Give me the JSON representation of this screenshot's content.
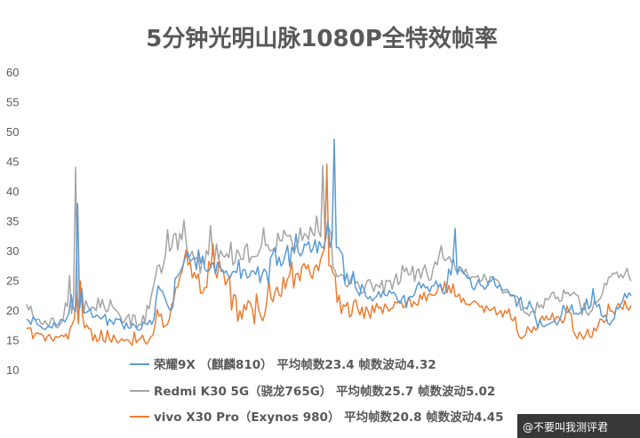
{
  "chart_data": {
    "type": "line",
    "title": "5分钟光明山脉1080P全特效帧率",
    "xlabel": "",
    "ylabel": "",
    "ylim": [
      10,
      60
    ],
    "yticks": [
      10,
      15,
      20,
      25,
      30,
      35,
      40,
      45,
      50,
      55,
      60
    ],
    "grid": false,
    "legend_position": "bottom",
    "series": [
      {
        "name": "荣耀9X （麒麟810）",
        "legend_label": "荣耀9X （麒麟810）    平均帧数23.4 帧数波动4.32",
        "color": "#5b9bd5",
        "values": [
          18.5,
          18.2,
          17.6,
          18.8,
          18.4,
          17.6,
          17.4,
          17.1,
          16.8,
          16.8,
          17.3,
          17.2,
          17.0,
          18.0,
          17.4,
          17.6,
          18.4,
          18.4,
          18.0,
          18.7,
          19.6,
          22.6,
          20.3,
          19.7,
          37.9,
          20.3,
          23.6,
          19.5,
          19.6,
          19.8,
          20.2,
          18.8,
          18.8,
          19.2,
          18.9,
          18.5,
          18.8,
          19.3,
          17.4,
          18.5,
          18.1,
          17.6,
          18.6,
          18.4,
          18.5,
          17.6,
          16.8,
          17.9,
          17.0,
          17.0,
          17.7,
          17.4,
          16.8,
          16.6,
          16.8,
          18.0,
          17.7,
          17.6,
          18.3,
          17.6,
          18.5,
          21.6,
          24.1,
          23.4,
          23.2,
          22.2,
          21.2,
          20.3,
          19.9,
          20.6,
          25.3,
          25.6,
          26.2,
          26.8,
          27.9,
          29.1,
          29.7,
          28.2,
          28.5,
          28.8,
          26.8,
          30.1,
          27.9,
          29.1,
          26.9,
          26.5,
          26.6,
          27.6,
          28.0,
          26.1,
          28.0,
          27.3,
          26.8,
          26.2,
          26.6,
          25.8,
          25.5,
          26.4,
          26.5,
          26.3,
          28.5,
          25.3,
          26.8,
          26.7,
          25.4,
          25.6,
          26.6,
          26.5,
          26.0,
          27.3,
          24.6,
          26.0,
          26.9,
          26.4,
          24.4,
          28.8,
          29.5,
          30.5,
          27.5,
          28.9,
          27.4,
          28.0,
          29.5,
          30.9,
          27.3,
          30.5,
          29.9,
          32.8,
          29.8,
          29.1,
          29.6,
          31.1,
          30.9,
          31.5,
          29.7,
          30.3,
          31.8,
          29.6,
          31.5,
          30.6,
          30.4,
          31.9,
          35.0,
          30.5,
          32.2,
          48.7,
          30.5,
          30.5,
          29.9,
          29.3,
          24.7,
          26.2,
          24.4,
          24.5,
          26.5,
          23.8,
          23.1,
          22.4,
          24.3,
          23.6,
          22.3,
          21.9,
          22.3,
          21.5,
          22.0,
          22.3,
          23.1,
          22.1,
          23.2,
          22.5,
          22.4,
          23.3,
          22.8,
          23.0,
          22.5,
          21.6,
          21.1,
          22.0,
          22.5,
          20.4,
          22.1,
          22.3,
          22.2,
          22.8,
          24.0,
          24.7,
          23.7,
          24.4,
          23.7,
          23.9,
          23.0,
          24.0,
          24.1,
          24.9,
          23.8,
          24.4,
          23.0,
          22.7,
          23.6,
          26.9,
          25.9,
          28.3,
          33.7,
          26.0,
          27.3,
          27.0,
          26.3,
          25.8,
          25.3,
          25.4,
          23.8,
          23.4,
          24.2,
          25.1,
          24.2,
          24.0,
          23.5,
          24.0,
          24.9,
          24.8,
          25.6,
          24.1,
          23.7,
          24.3,
          23.5,
          23.3,
          23.5,
          23.3,
          22.4,
          22.4,
          22.4,
          20.6,
          21.5,
          22.2,
          20.3,
          20.4,
          20.2,
          21.5,
          20.6,
          20.0,
          18.6,
          17.0,
          18.4,
          17.4,
          17.2,
          17.5,
          17.6,
          17.8,
          18.0,
          18.2,
          17.5,
          18.2,
          19.0,
          20.8,
          20.0,
          19.6,
          19.9,
          20.9,
          19.3,
          19.5,
          19.3,
          19.5,
          20.3,
          20.1,
          21.9,
          20.2,
          20.7,
          23.6,
          21.1,
          20.6,
          21.0,
          19.1,
          18.8,
          19.2,
          17.8,
          17.5,
          18.2,
          18.5,
          20.4,
          20.2,
          20.9,
          21.5,
          22.8,
          22.0,
          22.9,
          22.4
        ]
      },
      {
        "name": "Redmi K30 5G（骁龙765G）",
        "legend_label": "Redmi K30 5G（骁龙765G）   平均帧数25.7 帧数波动5.02",
        "color": "#a5a5a5",
        "values": [
          21.0,
          20.0,
          20.7,
          19.1,
          18.4,
          18.4,
          18.5,
          17.7,
          17.6,
          18.2,
          17.6,
          17.4,
          18.6,
          18.6,
          17.3,
          17.0,
          17.4,
          17.9,
          18.8,
          21.2,
          20.6,
          25.8,
          19.4,
          22.2,
          44.0,
          19.6,
          22.6,
          22.1,
          19.7,
          21.6,
          20.6,
          20.0,
          20.5,
          20.4,
          19.9,
          22.0,
          20.4,
          21.8,
          20.5,
          19.7,
          20.0,
          21.7,
          20.6,
          20.2,
          19.9,
          19.5,
          18.8,
          17.8,
          18.2,
          18.8,
          19.3,
          17.2,
          19.2,
          19.1,
          17.0,
          17.6,
          17.5,
          19.1,
          18.0,
          20.8,
          20.2,
          22.4,
          23.9,
          25.4,
          27.4,
          27.6,
          26.2,
          27.6,
          29.3,
          33.5,
          29.9,
          30.5,
          32.7,
          32.9,
          30.1,
          32.9,
          31.8,
          35.1,
          31.8,
          28.8,
          29.1,
          29.9,
          28.5,
          28.7,
          28.9,
          26.2,
          28.6,
          27.6,
          30.0,
          29.3,
          34.2,
          29.8,
          28.4,
          31.1,
          28.5,
          30.0,
          29.2,
          28.9,
          29.5,
          28.8,
          31.4,
          27.6,
          28.0,
          30.1,
          29.6,
          28.5,
          28.5,
          30.7,
          31.1,
          28.0,
          28.9,
          29.0,
          29.0,
          29.1,
          30.0,
          30.8,
          33.8,
          30.8,
          31.0,
          30.0,
          30.0,
          30.3,
          29.8,
          32.9,
          31.7,
          31.6,
          33.4,
          32.6,
          32.4,
          32.6,
          31.3,
          29.5,
          30.8,
          31.3,
          33.8,
          31.7,
          32.8,
          32.6,
          31.9,
          34.0,
          32.9,
          32.5,
          35.8,
          33.2,
          32.3,
          44.3,
          33.6,
          33.7,
          33.8,
          32.9,
          27.2,
          26.7,
          25.6,
          25.7,
          26.0,
          25.8,
          24.2,
          23.9,
          24.4,
          25.6,
          26.2,
          24.5,
          24.8,
          23.8,
          22.8,
          23.0,
          24.2,
          25.0,
          25.1,
          24.3,
          23.1,
          24.3,
          24.1,
          23.8,
          25.0,
          22.8,
          25.0,
          24.8,
          25.0,
          23.5,
          25.0,
          26.1,
          24.3,
          24.8,
          27.5,
          26.4,
          27.1,
          25.9,
          26.0,
          27.4,
          24.8,
          26.6,
          26.9,
          25.3,
          26.7,
          27.6,
          26.2,
          25.0,
          25.1,
          26.9,
          28.1,
          27.6,
          29.3,
          30.8,
          28.7,
          28.3,
          28.6,
          29.0,
          28.0,
          28.6,
          26.8,
          26.2,
          26.8,
          26.5,
          26.1,
          26.9,
          25.8,
          25.2,
          25.6,
          25.6,
          25.5,
          25.8,
          24.8,
          25.0,
          26.0,
          25.3,
          24.1,
          25.6,
          25.6,
          25.3,
          25.1,
          24.9,
          24.1,
          22.8,
          23.0,
          23.0,
          23.0,
          22.5,
          22.6,
          22.4,
          22.3,
          21.9,
          20.0,
          20.1,
          19.5,
          19.5,
          19.0,
          19.7,
          19.8,
          19.5,
          21.3,
          20.4,
          20.9,
          20.3,
          22.0,
          21.7,
          22.0,
          22.8,
          23.0,
          21.9,
          22.2,
          21.4,
          21.6,
          23.4,
          22.7,
          23.0,
          22.4,
          22.7,
          23.0,
          22.6,
          22.4,
          21.0,
          19.2,
          21.2,
          19.7,
          19.1,
          19.7,
          20.0,
          21.6,
          21.2,
          21.6,
          22.0,
          22.8,
          24.5,
          24.2,
          25.5,
          25.6,
          26.2,
          26.1,
          26.4,
          25.4,
          26.0,
          25.4,
          26.1,
          27.0,
          25.6,
          24.9
        ]
      },
      {
        "name": "vivo X30 Pro（Exynos 980）",
        "legend_label": "vivo X30 Pro（Exynos 980）  平均帧数20.8 帧数波动4.45",
        "color": "#ed7d31",
        "values": [
          16.9,
          17.0,
          17.0,
          15.2,
          15.9,
          16.2,
          16.0,
          16.0,
          15.7,
          14.8,
          15.6,
          15.9,
          15.1,
          14.8,
          15.6,
          15.4,
          15.6,
          15.8,
          15.5,
          16.0,
          15.1,
          16.9,
          17.6,
          18.5,
          22.8,
          17.7,
          24.9,
          19.0,
          17.0,
          17.5,
          16.9,
          16.8,
          14.8,
          15.9,
          14.7,
          15.0,
          16.6,
          14.9,
          14.6,
          16.6,
          15.1,
          14.6,
          15.8,
          15.1,
          14.5,
          14.8,
          15.2,
          14.8,
          15.0,
          15.0,
          14.5,
          14.1,
          16.3,
          14.5,
          15.0,
          15.2,
          15.8,
          14.7,
          14.3,
          14.9,
          15.5,
          15.8,
          17.5,
          20.1,
          19.0,
          19.3,
          17.1,
          17.4,
          17.6,
          18.6,
          20.9,
          21.5,
          23.7,
          23.9,
          25.6,
          26.4,
          28.3,
          30.1,
          27.6,
          28.1,
          25.4,
          26.3,
          25.3,
          26.1,
          22.8,
          22.9,
          23.8,
          23.8,
          28.2,
          27.1,
          31.1,
          26.4,
          25.4,
          28.3,
          26.5,
          26.6,
          24.2,
          25.0,
          25.7,
          20.0,
          22.6,
          22.4,
          18.1,
          19.9,
          18.5,
          20.9,
          20.0,
          21.6,
          21.2,
          20.2,
          17.7,
          22.7,
          20.2,
          19.0,
          18.2,
          19.2,
          21.4,
          25.0,
          22.0,
          21.4,
          23.1,
          23.9,
          22.5,
          22.3,
          25.5,
          23.6,
          25.2,
          25.9,
          28.1,
          23.7,
          26.0,
          26.2,
          24.9,
          27.3,
          27.8,
          26.9,
          27.6,
          26.0,
          25.3,
          27.1,
          27.6,
          26.6,
          28.6,
          29.5,
          30.5,
          44.5,
          27.5,
          27.4,
          26.2,
          25.8,
          21.3,
          22.5,
          19.4,
          20.9,
          20.6,
          21.3,
          18.8,
          19.2,
          21.4,
          21.7,
          20.1,
          19.2,
          20.5,
          18.6,
          20.5,
          19.8,
          18.6,
          20.8,
          19.6,
          21.1,
          20.3,
          20.5,
          19.4,
          21.0,
          20.5,
          19.8,
          20.2,
          20.4,
          21.4,
          21.2,
          21.5,
          21.3,
          20.4,
          20.7,
          21.5,
          22.0,
          20.5,
          21.4,
          21.0,
          20.8,
          22.6,
          21.8,
          23.0,
          21.5,
          22.6,
          22.7,
          22.5,
          22.5,
          22.9,
          24.0,
          24.2,
          23.1,
          24.8,
          22.9,
          24.1,
          22.8,
          24.4,
          22.3,
          22.3,
          22.7,
          21.3,
          22.0,
          21.0,
          21.0,
          20.8,
          21.2,
          21.5,
          21.4,
          21.0,
          20.5,
          20.7,
          19.6,
          20.7,
          20.2,
          19.9,
          20.2,
          20.5,
          19.2,
          19.5,
          19.9,
          18.8,
          19.9,
          19.5,
          20.2,
          18.5,
          18.2,
          18.9,
          16.4,
          15.5,
          15.2,
          15.5,
          15.8,
          17.2,
          16.7,
          16.2,
          17.2,
          16.6,
          17.2,
          18.3,
          19.0,
          18.3,
          19.0,
          18.4,
          18.5,
          19.5,
          18.1,
          18.9,
          18.8,
          18.4,
          17.8,
          18.6,
          20.7,
          19.7,
          19.4,
          16.5,
          15.8,
          15.2,
          16.3,
          15.8,
          15.1,
          15.8,
          16.8,
          15.5,
          15.4,
          17.0,
          16.5,
          17.3,
          18.5,
          18.4,
          17.9,
          18.4,
          21.0,
          19.8,
          19.8,
          19.3,
          20.6,
          21.1,
          20.5,
          20.1,
          21.6,
          20.3,
          20.0,
          20.8
        ]
      }
    ]
  },
  "watermark": {
    "text": "@不要叫我测评君"
  }
}
